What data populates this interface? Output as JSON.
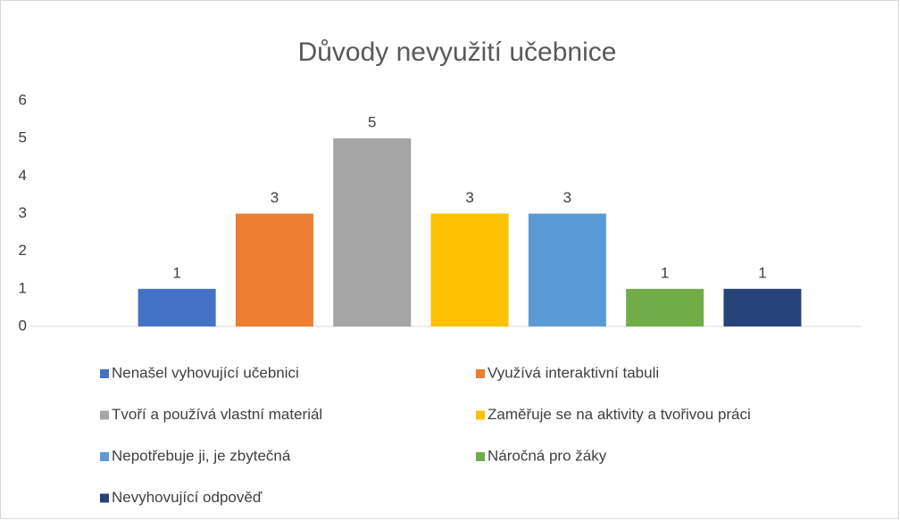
{
  "chart_data": {
    "type": "bar",
    "title": "Důvody nevyužití učebnice",
    "categories": [
      "Nenašel vyhovující učebnici",
      "Využívá interaktivní tabuli",
      "Tvoří a používá vlastní materiál",
      "Zaměřuje se na aktivity a tvořivou práci",
      "Nepotřebuje ji, je zbytečná",
      "Náročná pro žáky",
      "Nevyhovující odpověď"
    ],
    "values": [
      1,
      3,
      5,
      3,
      3,
      1,
      1
    ],
    "colors": [
      "#4472c4",
      "#ed7d31",
      "#a5a5a5",
      "#ffc000",
      "#5b9bd5",
      "#70ad47",
      "#264478"
    ],
    "ylim": [
      0,
      6
    ],
    "yticks": [
      0,
      1,
      2,
      3,
      4,
      5,
      6
    ],
    "grid": false,
    "legend": "bottom"
  }
}
